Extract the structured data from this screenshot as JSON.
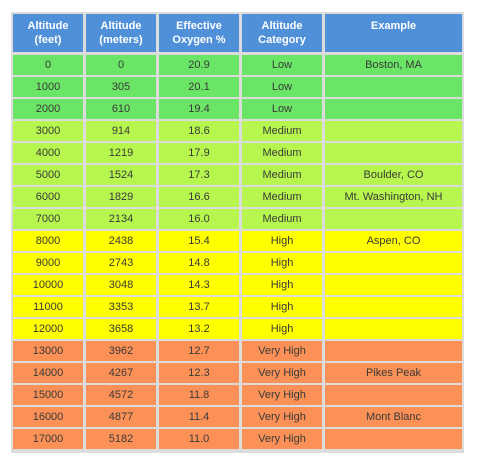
{
  "headers": [
    "Altitude (feet)",
    "Altitude (meters)",
    "Effective Oxygen %",
    "Altitude Category",
    "Example"
  ],
  "header_lines": [
    [
      "Altitude",
      "(feet)"
    ],
    [
      "Altitude",
      "(meters)"
    ],
    [
      "Effective",
      "Oxygen %"
    ],
    [
      "Altitude",
      "Category"
    ],
    [
      "Example",
      ""
    ]
  ],
  "colors": {
    "header": "#4f90d8",
    "Low": "#6ae565",
    "Medium": "#b6f64e",
    "High": "#ffff00",
    "Very High": "#fb9156"
  },
  "rows": [
    {
      "feet": "0",
      "meters": "0",
      "oxygen": "20.9",
      "category": "Low",
      "example": "Boston, MA"
    },
    {
      "feet": "1000",
      "meters": "305",
      "oxygen": "20.1",
      "category": "Low",
      "example": ""
    },
    {
      "feet": "2000",
      "meters": "610",
      "oxygen": "19.4",
      "category": "Low",
      "example": ""
    },
    {
      "feet": "3000",
      "meters": "914",
      "oxygen": "18.6",
      "category": "Medium",
      "example": ""
    },
    {
      "feet": "4000",
      "meters": "1219",
      "oxygen": "17.9",
      "category": "Medium",
      "example": ""
    },
    {
      "feet": "5000",
      "meters": "1524",
      "oxygen": "17.3",
      "category": "Medium",
      "example": "Boulder, CO"
    },
    {
      "feet": "6000",
      "meters": "1829",
      "oxygen": "16.6",
      "category": "Medium",
      "example": "Mt. Washington, NH"
    },
    {
      "feet": "7000",
      "meters": "2134",
      "oxygen": "16.0",
      "category": "Medium",
      "example": ""
    },
    {
      "feet": "8000",
      "meters": "2438",
      "oxygen": "15.4",
      "category": "High",
      "example": "Aspen, CO"
    },
    {
      "feet": "9000",
      "meters": "2743",
      "oxygen": "14.8",
      "category": "High",
      "example": ""
    },
    {
      "feet": "10000",
      "meters": "3048",
      "oxygen": "14.3",
      "category": "High",
      "example": ""
    },
    {
      "feet": "11000",
      "meters": "3353",
      "oxygen": "13.7",
      "category": "High",
      "example": ""
    },
    {
      "feet": "12000",
      "meters": "3658",
      "oxygen": "13.2",
      "category": "High",
      "example": ""
    },
    {
      "feet": "13000",
      "meters": "3962",
      "oxygen": "12.7",
      "category": "Very High",
      "example": ""
    },
    {
      "feet": "14000",
      "meters": "4267",
      "oxygen": "12.3",
      "category": "Very High",
      "example": "Pikes Peak"
    },
    {
      "feet": "15000",
      "meters": "4572",
      "oxygen": "11.8",
      "category": "Very High",
      "example": ""
    },
    {
      "feet": "16000",
      "meters": "4877",
      "oxygen": "11.4",
      "category": "Very High",
      "example": "Mont Blanc"
    },
    {
      "feet": "17000",
      "meters": "5182",
      "oxygen": "11.0",
      "category": "Very High",
      "example": ""
    }
  ]
}
